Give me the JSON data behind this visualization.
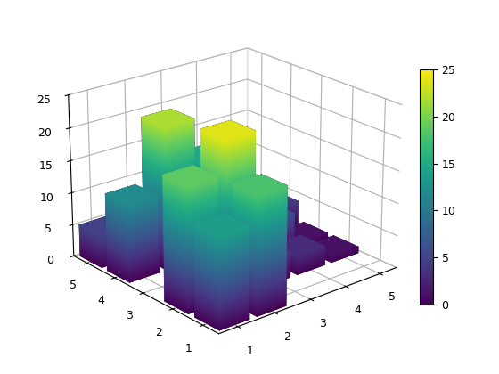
{
  "colormap": "viridis",
  "clim": [
    0,
    25
  ],
  "colorbar_ticks": [
    0,
    5,
    10,
    15,
    20,
    25
  ],
  "heights": [
    [
      14,
      18,
      0,
      0,
      0
    ],
    [
      19,
      24,
      4,
      3,
      1
    ],
    [
      0,
      5,
      13,
      6,
      1
    ],
    [
      12,
      22,
      15,
      7,
      4
    ],
    [
      5,
      2,
      0,
      0,
      0
    ]
  ],
  "zlim": [
    0,
    25
  ],
  "xticks": [
    1,
    2,
    3,
    4,
    5
  ],
  "yticks": [
    1,
    2,
    3,
    4,
    5
  ],
  "zticks": [
    0,
    5,
    10,
    15,
    20,
    25
  ],
  "bar_width": 0.8,
  "bar_depth": 0.8,
  "elev": 22,
  "azim": -130,
  "background_color": "#ffffff",
  "gradient_steps": 50
}
